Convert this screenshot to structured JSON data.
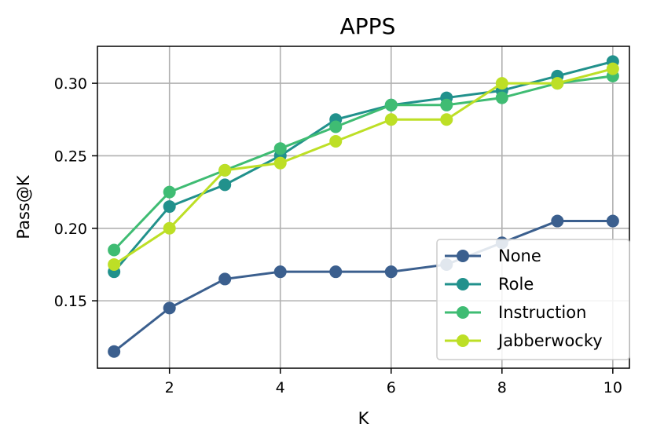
{
  "chart_data": {
    "type": "line",
    "title": "APPS",
    "xlabel": "K",
    "ylabel": "Pass@K",
    "x": [
      1,
      2,
      3,
      4,
      5,
      6,
      7,
      8,
      9,
      10
    ],
    "xlim": [
      0.7,
      10.3
    ],
    "ylim": [
      0.1035,
      0.3255
    ],
    "xticks": [
      2,
      4,
      6,
      8,
      10
    ],
    "yticks": [
      0.15,
      0.2,
      0.25,
      0.3
    ],
    "ytick_labels": [
      "0.15",
      "0.20",
      "0.25",
      "0.30"
    ],
    "grid": true,
    "legend_position": "lower-right",
    "series": [
      {
        "name": "None",
        "color": "#3b5f8e",
        "values": [
          0.115,
          0.145,
          0.165,
          0.17,
          0.17,
          0.17,
          0.175,
          0.19,
          0.205,
          0.205
        ]
      },
      {
        "name": "Role",
        "color": "#21918c",
        "values": [
          0.17,
          0.215,
          0.23,
          0.25,
          0.275,
          0.285,
          0.29,
          0.295,
          0.305,
          0.315
        ]
      },
      {
        "name": "Instruction",
        "color": "#3fbc73",
        "values": [
          0.185,
          0.225,
          0.24,
          0.255,
          0.27,
          0.285,
          0.285,
          0.29,
          0.3,
          0.305
        ]
      },
      {
        "name": "Jabberwocky",
        "color": "#bddf26",
        "values": [
          0.175,
          0.2,
          0.24,
          0.245,
          0.26,
          0.275,
          0.275,
          0.3,
          0.3,
          0.31
        ]
      }
    ]
  }
}
